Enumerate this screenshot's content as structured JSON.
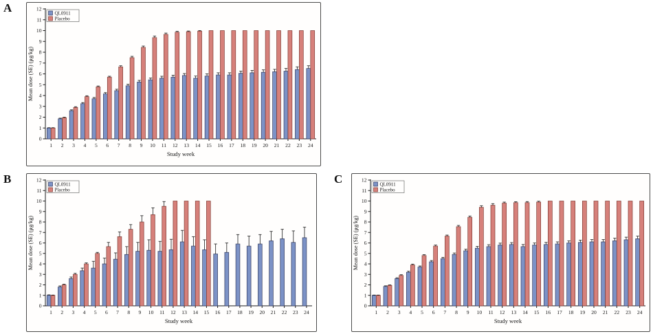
{
  "figure": {
    "panels": [
      {
        "label": "A",
        "chart_index": 0
      },
      {
        "label": "B",
        "chart_index": 1
      },
      {
        "label": "C",
        "chart_index": 2
      }
    ]
  },
  "colors": {
    "ql0911_fill": "#7c92c6",
    "ql0911_border": "#333a5e",
    "placebo_fill": "#d6807a",
    "placebo_border": "#7e3a33",
    "axis": "#1a1a1a",
    "error_bar": "#1a1a1a"
  },
  "chart_data": [
    {
      "type": "bar",
      "title": "",
      "xlabel": "Study week",
      "ylabel": "Mean dose (SE) (μg/kg)",
      "ylim": [
        0,
        12
      ],
      "ytick_step": 1,
      "grid": false,
      "legend_position": "top-left",
      "categories": [
        1,
        2,
        3,
        4,
        5,
        6,
        7,
        8,
        9,
        10,
        11,
        12,
        13,
        14,
        15,
        16,
        17,
        18,
        19,
        20,
        21,
        22,
        23,
        24
      ],
      "series": [
        {
          "name": "QL0911",
          "values": [
            1.0,
            1.85,
            2.6,
            3.25,
            3.7,
            4.15,
            4.45,
            4.9,
            5.25,
            5.45,
            5.6,
            5.7,
            5.85,
            5.6,
            5.8,
            5.9,
            5.9,
            6.05,
            6.1,
            6.15,
            6.2,
            6.25,
            6.4,
            6.5
          ],
          "se": [
            0.03,
            0.06,
            0.08,
            0.1,
            0.12,
            0.12,
            0.13,
            0.14,
            0.15,
            0.17,
            0.18,
            0.18,
            0.18,
            0.2,
            0.2,
            0.2,
            0.2,
            0.2,
            0.22,
            0.22,
            0.22,
            0.25,
            0.25,
            0.25
          ]
        },
        {
          "name": "Placebo",
          "values": [
            1.0,
            1.95,
            2.9,
            3.9,
            4.8,
            5.7,
            6.65,
            7.5,
            8.45,
            9.35,
            9.65,
            9.85,
            9.9,
            9.95,
            10,
            10,
            10,
            10,
            10,
            10,
            10,
            10,
            10,
            10
          ],
          "se": [
            0.03,
            0.05,
            0.07,
            0.08,
            0.08,
            0.08,
            0.1,
            0.12,
            0.12,
            0.15,
            0.12,
            0.08,
            0.06,
            0.05,
            0,
            0,
            0,
            0,
            0,
            0,
            0,
            0,
            0,
            0
          ]
        }
      ]
    },
    {
      "type": "bar",
      "title": "",
      "xlabel": "Study week",
      "ylabel": "Mean dose (SE) (μg/kg)",
      "ylim": [
        0,
        12
      ],
      "ytick_step": 1,
      "grid": false,
      "legend_position": "top-left",
      "categories": [
        1,
        2,
        3,
        4,
        5,
        6,
        7,
        8,
        9,
        10,
        11,
        12,
        13,
        14,
        15,
        16,
        17,
        18,
        19,
        20,
        21,
        22,
        23,
        24
      ],
      "series": [
        {
          "name": "QL0911",
          "values": [
            1.0,
            1.8,
            2.6,
            3.35,
            3.6,
            4.0,
            4.45,
            4.9,
            5.2,
            5.3,
            5.2,
            5.35,
            6.1,
            5.7,
            5.35,
            4.95,
            5.1,
            5.9,
            5.7,
            5.9,
            6.2,
            6.4,
            6.05,
            6.5
          ],
          "se": [
            0.05,
            0.1,
            0.15,
            0.25,
            0.65,
            0.55,
            0.6,
            0.75,
            0.85,
            1.0,
            0.95,
            1.0,
            1.1,
            0.9,
            0.95,
            0.95,
            0.9,
            0.9,
            0.95,
            0.9,
            0.9,
            0.9,
            1.1,
            1.0
          ]
        },
        {
          "name": "Placebo",
          "values": [
            1.0,
            2.0,
            3.0,
            4.0,
            5.0,
            5.65,
            6.6,
            7.3,
            8.0,
            8.7,
            9.5,
            10,
            10,
            10,
            10,
            null,
            null,
            null,
            null,
            null,
            null,
            null,
            null,
            null
          ],
          "se": [
            0.03,
            0.06,
            0.1,
            0.1,
            0.1,
            0.4,
            0.45,
            0.45,
            0.6,
            0.65,
            0.45,
            0,
            0,
            0,
            0,
            0,
            0,
            0,
            0,
            0,
            0,
            0,
            0,
            0
          ]
        }
      ]
    },
    {
      "type": "bar",
      "title": "",
      "xlabel": "Study week",
      "ylabel": "Mean dose (SE) (μg/kg)",
      "ylim": [
        0,
        12
      ],
      "ytick_step": 1,
      "grid": false,
      "legend_position": "top-left",
      "categories": [
        1,
        2,
        3,
        4,
        5,
        6,
        7,
        8,
        9,
        10,
        11,
        12,
        13,
        14,
        15,
        16,
        17,
        18,
        19,
        20,
        21,
        22,
        23,
        24
      ],
      "series": [
        {
          "name": "QL0911",
          "values": [
            1.0,
            1.85,
            2.6,
            3.2,
            3.7,
            4.2,
            4.5,
            4.9,
            5.25,
            5.5,
            5.65,
            5.8,
            5.85,
            5.65,
            5.8,
            5.85,
            5.9,
            6.0,
            6.05,
            6.1,
            6.1,
            6.2,
            6.3,
            6.4
          ],
          "se": [
            0.03,
            0.06,
            0.08,
            0.1,
            0.1,
            0.12,
            0.13,
            0.14,
            0.15,
            0.17,
            0.18,
            0.18,
            0.18,
            0.2,
            0.2,
            0.2,
            0.2,
            0.2,
            0.22,
            0.22,
            0.22,
            0.25,
            0.25,
            0.25
          ]
        },
        {
          "name": "Placebo",
          "values": [
            1.0,
            1.95,
            2.9,
            3.9,
            4.8,
            5.7,
            6.65,
            7.55,
            8.45,
            9.4,
            9.6,
            9.8,
            9.85,
            9.85,
            9.9,
            10,
            10,
            10,
            10,
            10,
            10,
            10,
            10,
            10
          ],
          "se": [
            0.03,
            0.05,
            0.07,
            0.08,
            0.08,
            0.1,
            0.1,
            0.12,
            0.12,
            0.15,
            0.15,
            0.1,
            0.08,
            0.1,
            0.08,
            0,
            0,
            0,
            0,
            0,
            0,
            0,
            0,
            0
          ]
        }
      ]
    }
  ]
}
